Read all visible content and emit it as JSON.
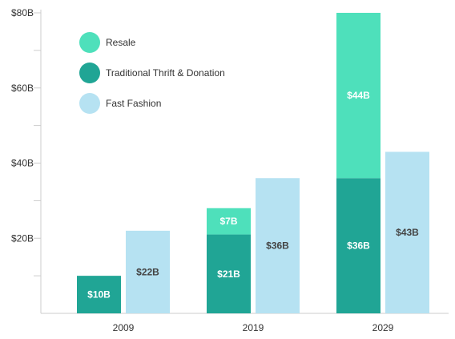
{
  "chart_data": {
    "type": "bar",
    "categories": [
      "2009",
      "2019",
      "2029"
    ],
    "series": [
      {
        "name": "Traditional Thrift & Donation",
        "stack": "secondhand",
        "values": [
          10,
          21,
          36
        ],
        "labels": [
          "$10B",
          "$21B",
          "$36B"
        ],
        "color": "#20a595"
      },
      {
        "name": "Resale",
        "stack": "secondhand",
        "values": [
          0,
          7,
          44
        ],
        "labels": [
          "",
          "$7B",
          "$44B"
        ],
        "color": "#4ee0bb"
      },
      {
        "name": "Fast Fashion",
        "stack": "fastfashion",
        "values": [
          22,
          36,
          43
        ],
        "labels": [
          "$22B",
          "$36B",
          "$43B"
        ],
        "color": "#b6e2f2"
      }
    ],
    "legend": [
      {
        "name": "Resale",
        "color": "#4ee0bb"
      },
      {
        "name": "Traditional Thrift & Donation",
        "color": "#20a595"
      },
      {
        "name": "Fast Fashion",
        "color": "#b6e2f2"
      }
    ],
    "y_ticks": [
      {
        "value": 20,
        "label": "$20B"
      },
      {
        "value": 40,
        "label": "$40B"
      },
      {
        "value": 60,
        "label": "$60B"
      },
      {
        "value": 80,
        "label": "$80B"
      }
    ],
    "ylim": [
      0,
      80
    ],
    "legend_position": "top-left",
    "grid": false,
    "title": "",
    "xlabel": "",
    "ylabel": ""
  }
}
